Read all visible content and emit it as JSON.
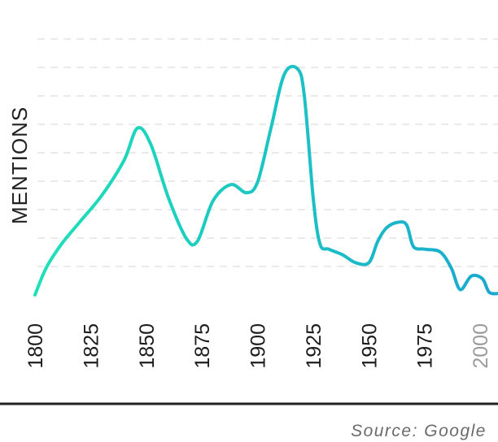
{
  "chart_data": {
    "type": "line",
    "title": "",
    "xlabel": "",
    "ylabel": "MENTIONS",
    "source": "Source: Google",
    "x_ticks": [
      "1800",
      "1825",
      "1850",
      "1875",
      "1900",
      "1925",
      "1950",
      "1975",
      "2000"
    ],
    "muted_ticks": [
      "2000"
    ],
    "xlim": [
      1800,
      2008
    ],
    "ylim": [
      0,
      9
    ],
    "grid": true,
    "gradient_colors": [
      "#1fe0b8",
      "#1aa9cf"
    ],
    "series": [
      {
        "x": [
          1800,
          1805,
          1812,
          1820,
          1830,
          1840,
          1846,
          1852,
          1860,
          1868,
          1873,
          1880,
          1888,
          1895,
          1900,
          1906,
          1912,
          1918,
          1921,
          1925,
          1928,
          1932,
          1938,
          1944,
          1950,
          1954,
          1958,
          1963,
          1967,
          1970,
          1975,
          1982,
          1987,
          1991,
          1996,
          2001,
          2004,
          2008
        ],
        "y": [
          0,
          1.0,
          1.9,
          2.7,
          3.7,
          5.0,
          6.2,
          5.6,
          3.6,
          2.1,
          2.0,
          3.5,
          4.1,
          3.8,
          4.2,
          6.2,
          8.2,
          8.4,
          7.4,
          3.6,
          1.9,
          1.7,
          1.5,
          1.2,
          1.2,
          2.0,
          2.5,
          2.7,
          2.6,
          1.8,
          1.7,
          1.6,
          1.0,
          0.2,
          0.7,
          0.6,
          0.1,
          0.05
        ]
      }
    ]
  }
}
